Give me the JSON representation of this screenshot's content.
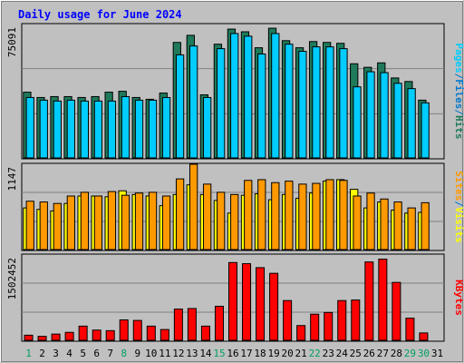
{
  "colors": {
    "background": "#c0c0c0",
    "panel": "#c0c0c0",
    "title": "#0000ff",
    "hits": "#1f7a5a",
    "files": "#0077cc",
    "pages": "#00ccff",
    "visits": "#ffff00",
    "sites": "#ff9900",
    "kbytes": "#ff0000",
    "weekday_label": "#000000",
    "weekend_label": "#00a060"
  },
  "chart_data": {
    "type": "bar",
    "title": "Daily usage for June 2024",
    "categories": [
      "1",
      "2",
      "3",
      "4",
      "5",
      "6",
      "7",
      "8",
      "9",
      "10",
      "11",
      "12",
      "13",
      "14",
      "15",
      "16",
      "17",
      "18",
      "19",
      "20",
      "21",
      "22",
      "23",
      "24",
      "25",
      "26",
      "27",
      "28",
      "29",
      "30",
      "31"
    ],
    "weekend_days": [
      "1",
      "8",
      "15",
      "22",
      "29",
      "30"
    ],
    "panels": [
      {
        "id": "hits_files_pages",
        "ymax_label": "75091",
        "ymax": 75091,
        "ylabel_parts": [
          "Pages",
          "/",
          "Files",
          "/",
          "Hits"
        ],
        "ylabel_colors": [
          "#00ccff",
          "#0077cc",
          "#0077cc",
          "#0077cc",
          "#1f7a5a"
        ],
        "series": [
          {
            "name": "Hits",
            "values": [
              37000,
              34000,
              34500,
              34500,
              34000,
              34500,
              37000,
              37500,
              34000,
              33000,
              36500,
              65000,
              69000,
              35500,
              64000,
              72500,
              71000,
              62000,
              73000,
              66000,
              62000,
              65500,
              65000,
              64500,
              53000,
              51000,
              53500,
              45000,
              43000,
              32500,
              null
            ]
          },
          {
            "name": "Files",
            "values": [
              null,
              null,
              null,
              null,
              null,
              null,
              null,
              null,
              null,
              null,
              null,
              null,
              null,
              null,
              null,
              null,
              null,
              null,
              null,
              null,
              null,
              null,
              null,
              null,
              null,
              null,
              null,
              null,
              null,
              null,
              null
            ]
          },
          {
            "name": "Pages",
            "values": [
              34000,
              32500,
              32000,
              32500,
              32000,
              32000,
              32000,
              34500,
              32500,
              32500,
              34000,
              58000,
              63000,
              34000,
              61500,
              70000,
              68500,
              58500,
              70000,
              64000,
              60000,
              62500,
              62500,
              61500,
              40000,
              48500,
              48000,
              42000,
              39000,
              31000,
              null
            ]
          }
        ]
      },
      {
        "id": "visits_sites",
        "ymax_label": "1147",
        "ymax": 1147,
        "ylabel_parts": [
          "Sites",
          "/",
          "Visits"
        ],
        "ylabel_colors": [
          "#ff9900",
          "#0077cc",
          "#ffff00"
        ],
        "series": [
          {
            "name": "Visits",
            "values": [
              560,
              540,
              520,
              620,
              720,
              720,
              710,
              790,
              740,
              720,
              590,
              740,
              870,
              740,
              660,
              490,
              730,
              750,
              670,
              740,
              690,
              760,
              920,
              940,
              810,
              560,
              640,
              530,
              490,
              500,
              null
            ]
          },
          {
            "name": "Sites",
            "values": [
              650,
              640,
              620,
              720,
              770,
              720,
              780,
              730,
              760,
              770,
              720,
              950,
              1147,
              880,
              770,
              740,
              930,
              940,
              900,
              920,
              880,
              890,
              940,
              930,
              720,
              760,
              680,
              640,
              560,
              630,
              null
            ]
          }
        ]
      },
      {
        "id": "kbytes",
        "ymax_label": "1502452",
        "ymax": 1502452,
        "ylabel_parts": [
          "KBytes"
        ],
        "ylabel_colors": [
          "#ff0000"
        ],
        "series": [
          {
            "name": "KBytes",
            "values": [
              90000,
              70000,
              110000,
              140000,
              250000,
              180000,
              170000,
              360000,
              350000,
              250000,
              190000,
              550000,
              560000,
              250000,
              600000,
              1370000,
              1350000,
              1280000,
              1180000,
              700000,
              260000,
              460000,
              490000,
              700000,
              710000,
              1380000,
              1430000,
              1020000,
              390000,
              130000,
              null
            ]
          }
        ]
      }
    ]
  }
}
